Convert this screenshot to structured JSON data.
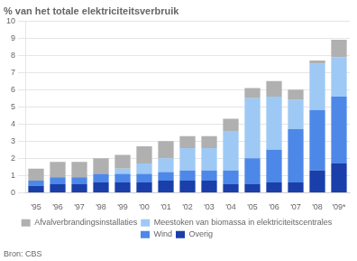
{
  "chart_data": {
    "type": "bar",
    "title": "% van het totale elektriciteitsverbruik",
    "annotations": [
      "Bron: CBS"
    ],
    "categories": [
      "'95",
      "'96",
      "'97",
      "'98",
      "'99",
      "'00",
      "'01",
      "'02",
      "'03",
      "'04",
      "'05",
      "'06",
      "'07",
      "'08",
      "'09*"
    ],
    "series": [
      {
        "name": "Overig",
        "color": "#1a3faa",
        "values": [
          0.4,
          0.5,
          0.5,
          0.6,
          0.6,
          0.6,
          0.7,
          0.7,
          0.7,
          0.5,
          0.5,
          0.6,
          0.6,
          1.3,
          1.7
        ]
      },
      {
        "name": "Wind",
        "color": "#4d88e8",
        "values": [
          0.3,
          0.4,
          0.4,
          0.5,
          0.5,
          0.5,
          0.5,
          0.6,
          0.6,
          0.8,
          1.5,
          1.9,
          3.1,
          3.5,
          3.9
        ]
      },
      {
        "name": "Meestoken van biomassa in elektriciteitscentrales",
        "color": "#9ec9f5",
        "values": [
          0.0,
          0.0,
          0.0,
          0.0,
          0.3,
          0.6,
          0.8,
          1.3,
          1.3,
          2.3,
          3.5,
          3.1,
          1.7,
          2.7,
          2.3
        ]
      },
      {
        "name": "Afvalverbrandingsinstallaties",
        "color": "#b0b0b0",
        "values": [
          0.7,
          0.9,
          0.9,
          0.9,
          0.8,
          1.0,
          1.0,
          0.7,
          0.7,
          0.7,
          0.6,
          0.9,
          0.6,
          0.2,
          1.0
        ]
      }
    ],
    "stacked": true,
    "ylim": [
      0,
      10
    ],
    "yticks": [
      0,
      1,
      2,
      3,
      4,
      5,
      6,
      7,
      8,
      9,
      10
    ],
    "grid": true,
    "legend": "bottom"
  }
}
